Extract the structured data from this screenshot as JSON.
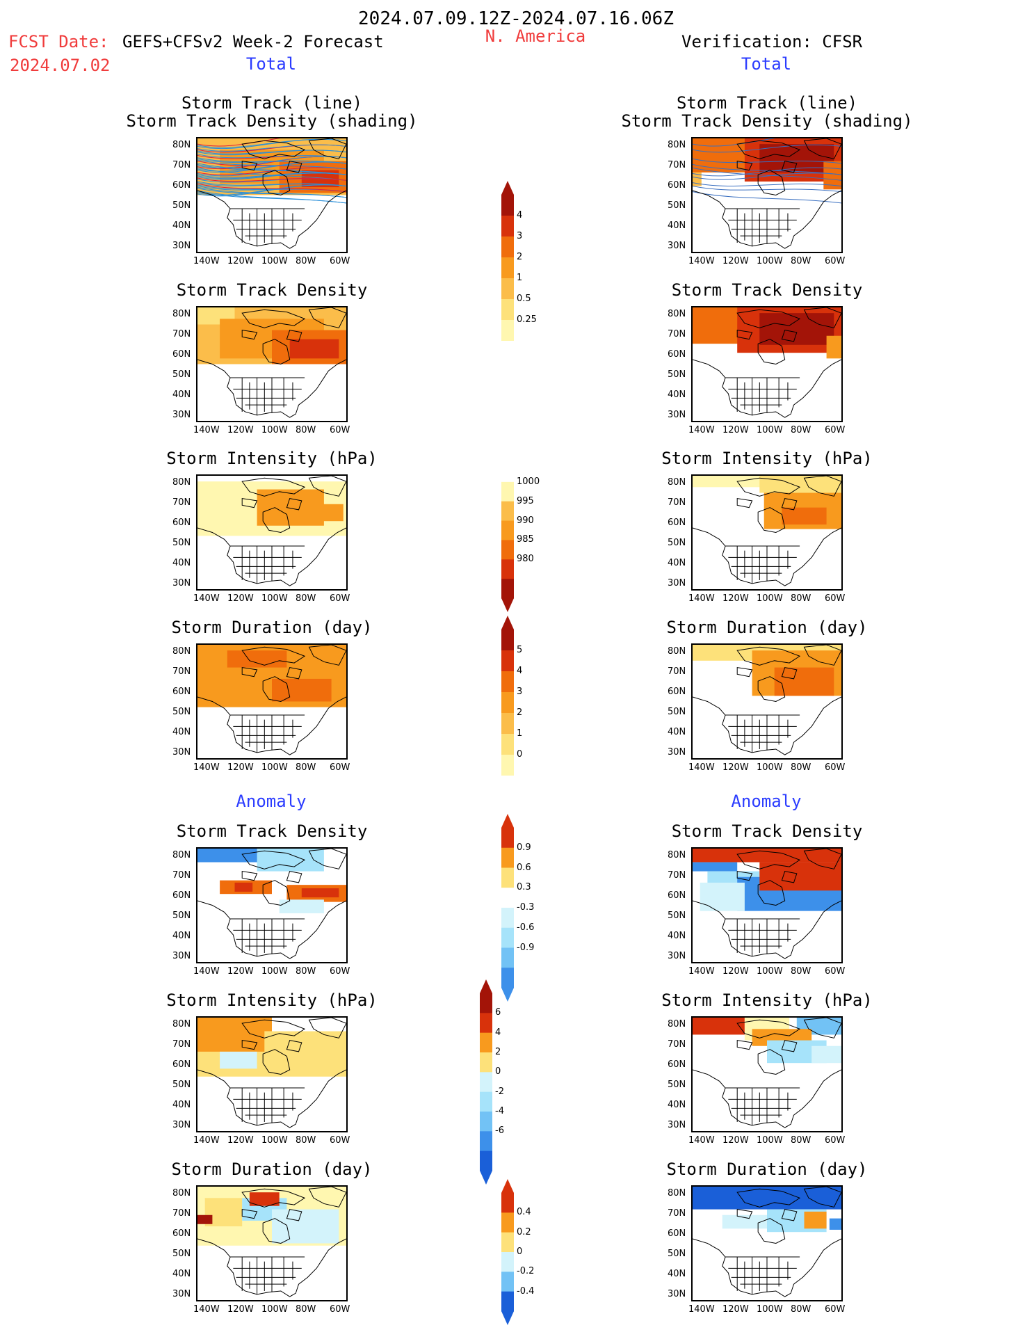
{
  "header": {
    "date_range": "2024.07.09.12Z-2024.07.16.06Z",
    "fcst_date_label": "FCST Date:",
    "fcst_date_value": "2024.07.02",
    "model": "GEFS+CFSv2 Week-2 Forecast",
    "region": "N. America",
    "verification": "Verification: CFSR"
  },
  "section_labels": {
    "total_left": "Total",
    "total_right": "Total",
    "anomaly_left": "Anomaly",
    "anomaly_right": "Anomaly"
  },
  "titles": {
    "track_line": "Storm Track (line)",
    "track_shading": "Storm Track Density (shading)",
    "track_density": "Storm Track Density",
    "intensity": "Storm Intensity (hPa)",
    "duration": "Storm Duration (day)"
  },
  "axes": {
    "lat_ticks": [
      "80N",
      "70N",
      "60N",
      "50N",
      "40N",
      "30N"
    ],
    "lon_ticks": [
      "140W",
      "120W",
      "100W",
      "80W",
      "60W"
    ]
  },
  "colorbars": {
    "density_total": [
      "4",
      "3",
      "2",
      "1",
      "0.5",
      "0.25"
    ],
    "intensity_total": [
      "1000",
      "995",
      "990",
      "985",
      "980"
    ],
    "duration_total": [
      "5",
      "4",
      "3",
      "2",
      "1",
      "0"
    ],
    "density_anom": [
      "0.9",
      "0.6",
      "0.3",
      "-0.3",
      "-0.6",
      "-0.9"
    ],
    "intensity_anom": [
      "6",
      "4",
      "2",
      "0",
      "-2",
      "-4",
      "-6"
    ],
    "duration_anom": [
      "0.4",
      "0.2",
      "0",
      "-0.2",
      "-0.4"
    ]
  },
  "colors": {
    "warm": [
      "#fff7b0",
      "#fde17a",
      "#fbbd4a",
      "#f89a1e",
      "#f06d0c",
      "#d8320b",
      "#a31408"
    ],
    "cool": [
      "#d3f3fb",
      "#a6e3fa",
      "#72c2f5",
      "#3d90ea",
      "#1a5fd8"
    ],
    "track_lines_fcst": "#2b8fd8",
    "track_lines_red": "#e0203a"
  }
}
